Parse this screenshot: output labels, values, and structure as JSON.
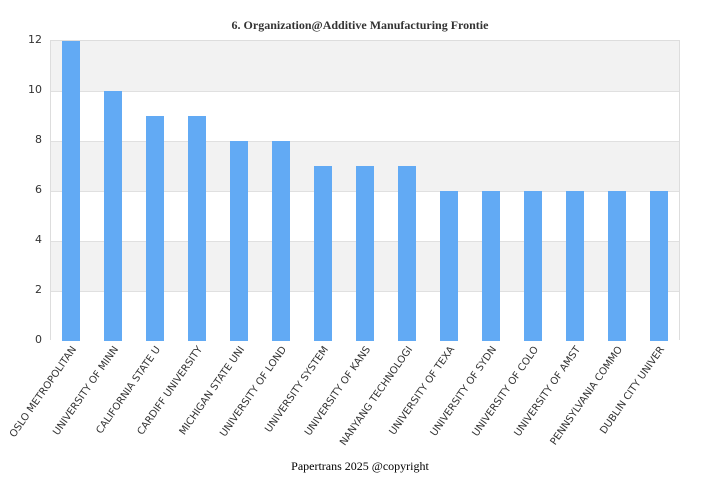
{
  "chart_data": {
    "type": "bar",
    "title": "6. Organization@Additive Manufacturing Frontie",
    "xlabel": "",
    "ylabel": "",
    "ylim": [
      0,
      12
    ],
    "yticks": [
      0,
      2,
      4,
      6,
      8,
      10,
      12
    ],
    "grid": true,
    "legend": null,
    "bar_color": "#62aaf4",
    "categories": [
      "OSLO METROPOLITAN",
      "UNIVERSITY OF MINN",
      "CALIFORNIA STATE U",
      "CARDIFF UNIVERSITY",
      "MICHIGAN STATE UNI",
      "UNIVERSITY OF LOND",
      "UNIVERSITY SYSTEM",
      "UNIVERSITY OF KANS",
      "NANYANG TECHNOLOGI",
      "UNIVERSITY OF TEXA",
      "UNIVERSITY OF SYDN",
      "UNIVERSITY OF COLO",
      "UNIVERSITY OF AMST",
      "PENNSYLVANIA COMMO",
      "DUBLIN CITY UNIVER"
    ],
    "values": [
      12,
      10,
      9,
      9,
      8,
      8,
      7,
      7,
      7,
      6,
      6,
      6,
      6,
      6,
      6
    ]
  },
  "footer": "Papertrans 2025 @copyright"
}
